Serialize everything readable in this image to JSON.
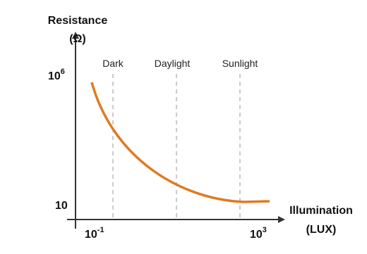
{
  "y_axis": {
    "title": "Resistance",
    "unit": "(Ω)",
    "top_label": {
      "base": "10",
      "exponent": "6"
    },
    "bottom_label": "10"
  },
  "x_axis": {
    "title": "Illumination",
    "unit": "(LUX)",
    "left_label": {
      "base": "10",
      "exponent": "-1"
    },
    "right_label": {
      "base": "10",
      "exponent": "3"
    }
  },
  "regions": [
    "Dark",
    "Daylight",
    "Sunlight"
  ]
}
